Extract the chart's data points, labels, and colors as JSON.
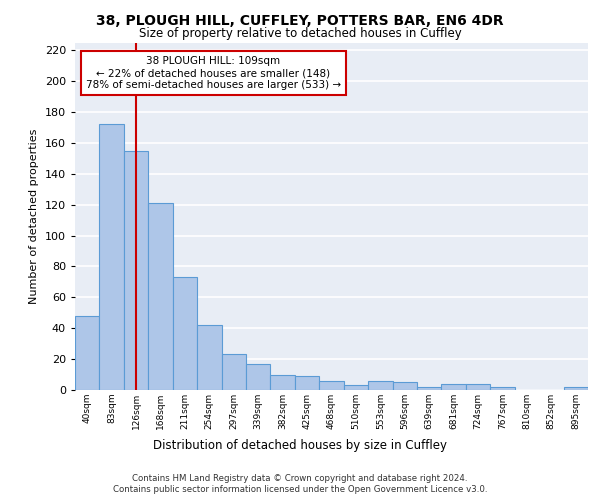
{
  "title1": "38, PLOUGH HILL, CUFFLEY, POTTERS BAR, EN6 4DR",
  "title2": "Size of property relative to detached houses in Cuffley",
  "xlabel": "Distribution of detached houses by size in Cuffley",
  "ylabel": "Number of detached properties",
  "bar_labels": [
    "40sqm",
    "83sqm",
    "126sqm",
    "168sqm",
    "211sqm",
    "254sqm",
    "297sqm",
    "339sqm",
    "382sqm",
    "425sqm",
    "468sqm",
    "510sqm",
    "553sqm",
    "596sqm",
    "639sqm",
    "681sqm",
    "724sqm",
    "767sqm",
    "810sqm",
    "852sqm",
    "895sqm"
  ],
  "bar_values": [
    48,
    172,
    155,
    121,
    73,
    42,
    23,
    17,
    10,
    9,
    6,
    3,
    6,
    5,
    2,
    4,
    4,
    2,
    0,
    0,
    2
  ],
  "bar_color": "#aec6e8",
  "bar_edge_color": "#5b9bd5",
  "background_color": "#e8edf5",
  "grid_color": "#ffffff",
  "vline_x": 2.0,
  "vline_color": "#cc0000",
  "annotation_text": "38 PLOUGH HILL: 109sqm\n← 22% of detached houses are smaller (148)\n78% of semi-detached houses are larger (533) →",
  "annotation_box_color": "#ffffff",
  "annotation_box_edge": "#cc0000",
  "footer_text": "Contains HM Land Registry data © Crown copyright and database right 2024.\nContains public sector information licensed under the Open Government Licence v3.0.",
  "ylim": [
    0,
    225
  ],
  "yticks": [
    0,
    20,
    40,
    60,
    80,
    100,
    120,
    140,
    160,
    180,
    200,
    220
  ]
}
